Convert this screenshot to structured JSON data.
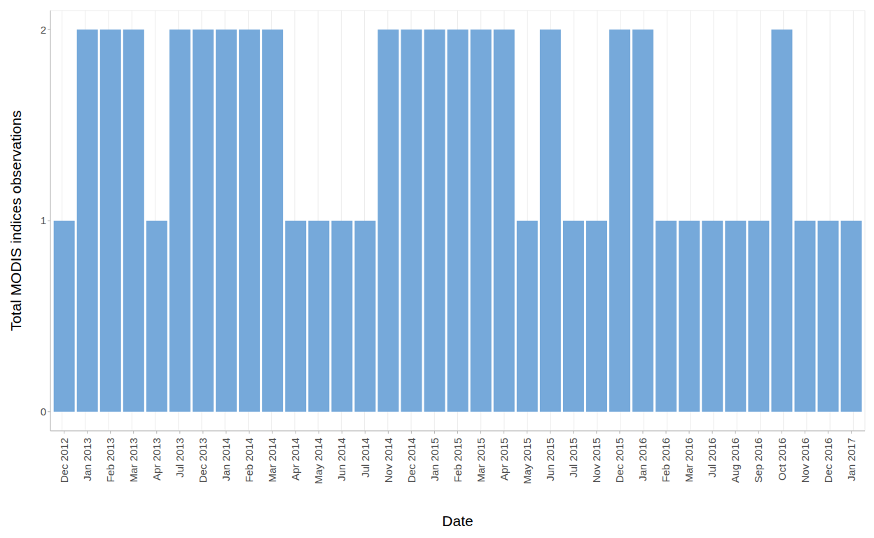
{
  "chart_data": {
    "type": "bar",
    "x_label": "Date",
    "y_label": "Total  MODIS indices observations",
    "categories": [
      "Dec 2012",
      "Jan 2013",
      "Feb 2013",
      "Mar 2013",
      "Apr 2013",
      "Jul 2013",
      "Dec 2013",
      "Jan 2014",
      "Feb 2014",
      "Mar 2014",
      "Apr 2014",
      "May 2014",
      "Jun 2014",
      "Jul 2014",
      "Nov 2014",
      "Dec 2014",
      "Jan 2015",
      "Feb 2015",
      "Mar 2015",
      "Apr 2015",
      "May 2015",
      "Jun 2015",
      "Jul 2015",
      "Nov 2015",
      "Dec 2015",
      "Jan 2016",
      "Feb 2016",
      "Mar 2016",
      "Jul 2016",
      "Aug 2016",
      "Sep 2016",
      "Oct 2016",
      "Nov 2016",
      "Dec 2016",
      "Jan 2017"
    ],
    "values": [
      1,
      2,
      2,
      2,
      1,
      2,
      2,
      2,
      2,
      2,
      1,
      1,
      1,
      1,
      2,
      2,
      2,
      2,
      2,
      2,
      1,
      2,
      1,
      1,
      2,
      2,
      1,
      1,
      1,
      1,
      1,
      2,
      1,
      1,
      1
    ],
    "color": "#76a9da",
    "ylim": [
      -0.1,
      2.1
    ],
    "yticks": [
      0,
      1,
      2
    ],
    "grid": true
  }
}
